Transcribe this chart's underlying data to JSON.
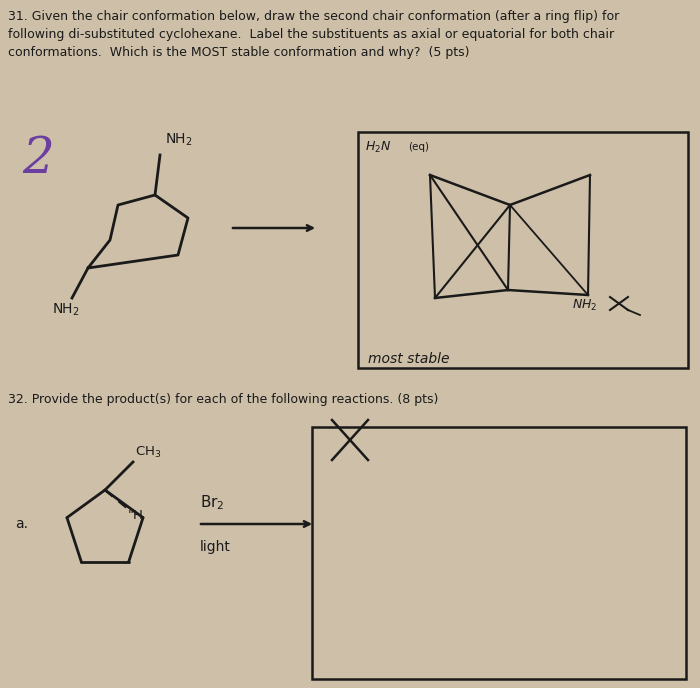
{
  "bg_color": "#cec0a8",
  "text_color": "#1a1a1a",
  "q31_line1": "31. Given the chair conformation below, draw the second chair conformation (after a ring flip) for",
  "q31_line2": "following di-substituted cyclohexane.  Label the substituents as axial or equatorial for both chair",
  "q31_line3": "conformations.  Which is the MOST stable conformation and why?  (5 pts)",
  "q32_text": "32. Provide the product(s) for each of the following reactions. (8 pts)",
  "number_2_color": "#6b3fa0",
  "draw_color": "#1a1a1a",
  "fs_main": 9.0,
  "fs_chem": 9.5
}
